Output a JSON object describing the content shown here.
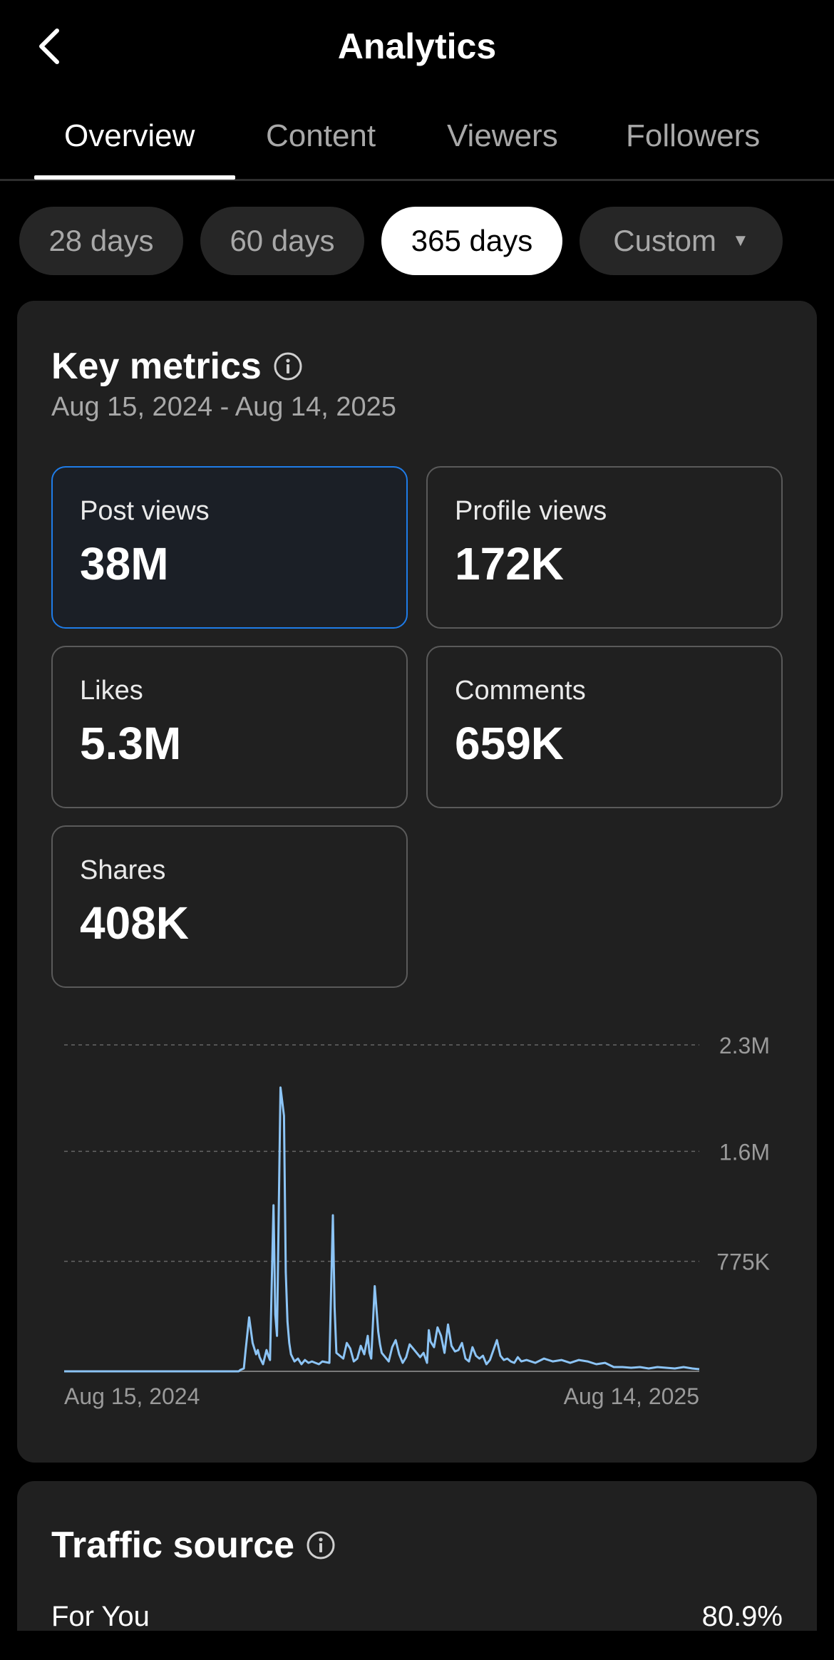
{
  "header": {
    "title": "Analytics",
    "back_icon": "chevron-left-icon"
  },
  "tabs": [
    {
      "label": "Overview",
      "active": true
    },
    {
      "label": "Content",
      "active": false
    },
    {
      "label": "Viewers",
      "active": false
    },
    {
      "label": "Followers",
      "active": false
    }
  ],
  "ranges": [
    {
      "label": "28 days",
      "active": false
    },
    {
      "label": "60 days",
      "active": false
    },
    {
      "label": "365 days",
      "active": true
    },
    {
      "label": "Custom",
      "active": false,
      "caret": "▼"
    }
  ],
  "key_metrics": {
    "title": "Key metrics",
    "date_range": "Aug 15, 2024 - Aug 14, 2025",
    "metrics": [
      {
        "label": "Post views",
        "value": "38M",
        "selected": true
      },
      {
        "label": "Profile views",
        "value": "172K",
        "selected": false
      },
      {
        "label": "Likes",
        "value": "5.3M",
        "selected": false
      },
      {
        "label": "Comments",
        "value": "659K",
        "selected": false
      },
      {
        "label": "Shares",
        "value": "408K",
        "selected": false
      }
    ]
  },
  "chart_data": {
    "type": "line",
    "x_start_label": "Aug 15, 2024",
    "x_end_label": "Aug 14, 2025",
    "y_ticks": [
      {
        "value": 2300000,
        "label": "2.3M"
      },
      {
        "value": 1550000,
        "label": "1.6M"
      },
      {
        "value": 775000,
        "label": "775K"
      }
    ],
    "ylim": [
      0,
      2300000
    ],
    "grid": true,
    "color": "#8cc4f5",
    "x_days": [
      0,
      100,
      101,
      103,
      104,
      106,
      108,
      110,
      111,
      112,
      114,
      116,
      117,
      118,
      120,
      121,
      122,
      124,
      126,
      127,
      128,
      129,
      130,
      132,
      134,
      136,
      138,
      140,
      142,
      144,
      146,
      148,
      150,
      152,
      154,
      155,
      156,
      158,
      160,
      162,
      164,
      166,
      168,
      170,
      172,
      174,
      175,
      176,
      178,
      180,
      181,
      182,
      184,
      186,
      188,
      190,
      192,
      194,
      196,
      198,
      200,
      202,
      204,
      206,
      208,
      209,
      210,
      212,
      214,
      216,
      218,
      220,
      222,
      224,
      226,
      228,
      230,
      232,
      234,
      236,
      238,
      240,
      242,
      244,
      246,
      248,
      250,
      252,
      254,
      256,
      258,
      260,
      262,
      265,
      270,
      275,
      280,
      285,
      290,
      295,
      300,
      305,
      310,
      315,
      320,
      325,
      330,
      335,
      340,
      345,
      350,
      355,
      360,
      364
    ],
    "values": [
      0,
      0,
      10000,
      20000,
      150000,
      380000,
      200000,
      120000,
      150000,
      100000,
      50000,
      150000,
      110000,
      80000,
      1170000,
      400000,
      250000,
      2000000,
      1800000,
      700000,
      350000,
      200000,
      120000,
      70000,
      90000,
      50000,
      80000,
      60000,
      70000,
      60000,
      50000,
      70000,
      65000,
      60000,
      1100000,
      450000,
      130000,
      110000,
      90000,
      200000,
      160000,
      70000,
      90000,
      180000,
      120000,
      250000,
      130000,
      90000,
      600000,
      280000,
      190000,
      130000,
      100000,
      70000,
      170000,
      220000,
      120000,
      60000,
      100000,
      190000,
      160000,
      130000,
      100000,
      130000,
      60000,
      290000,
      210000,
      170000,
      310000,
      250000,
      130000,
      330000,
      180000,
      140000,
      150000,
      200000,
      90000,
      70000,
      170000,
      110000,
      90000,
      110000,
      50000,
      80000,
      150000,
      220000,
      110000,
      80000,
      90000,
      70000,
      60000,
      100000,
      70000,
      80000,
      60000,
      90000,
      70000,
      80000,
      60000,
      80000,
      70000,
      50000,
      60000,
      30000,
      30000,
      25000,
      30000,
      20000,
      30000,
      25000,
      20000,
      30000,
      20000,
      15000
    ]
  },
  "traffic_source": {
    "title": "Traffic source",
    "rows": [
      {
        "label": "For You",
        "value": "80.9%"
      }
    ]
  }
}
